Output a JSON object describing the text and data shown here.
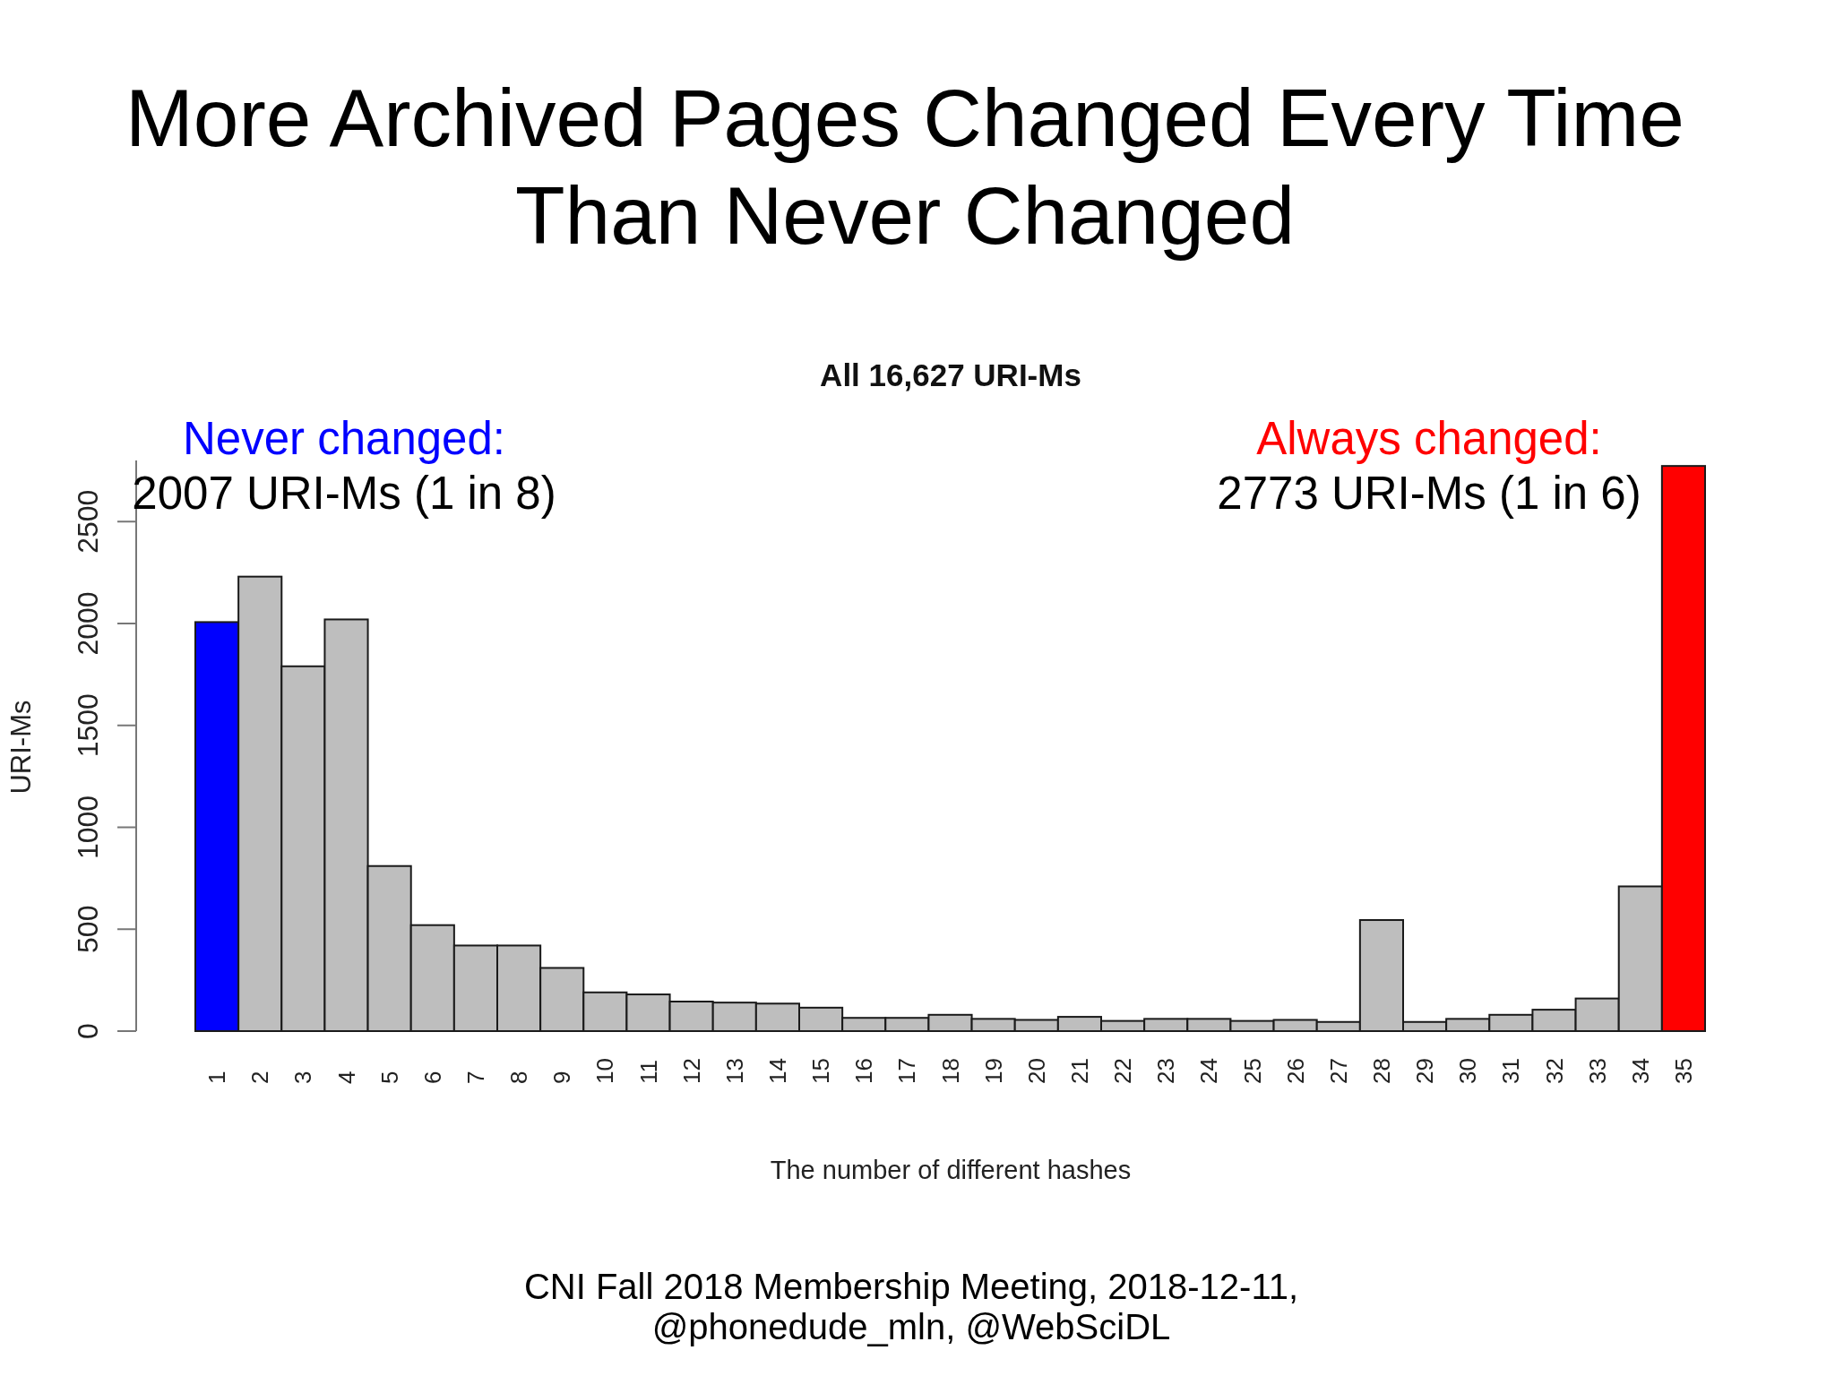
{
  "chart_data": {
    "type": "bar",
    "title": "More Archived Pages Changed Every Time Than Never Changed",
    "subtitle": "All 16,627 URI-Ms",
    "xlabel": "The number of different hashes",
    "ylabel": "URI-Ms",
    "categories": [
      "1",
      "2",
      "3",
      "4",
      "5",
      "6",
      "7",
      "8",
      "9",
      "10",
      "11",
      "12",
      "13",
      "14",
      "15",
      "16",
      "17",
      "18",
      "19",
      "20",
      "21",
      "22",
      "23",
      "24",
      "25",
      "26",
      "27",
      "28",
      "29",
      "30",
      "31",
      "32",
      "33",
      "34",
      "35"
    ],
    "values": [
      2007,
      2230,
      1790,
      2020,
      810,
      520,
      420,
      420,
      310,
      190,
      180,
      145,
      140,
      135,
      115,
      65,
      65,
      80,
      60,
      55,
      70,
      50,
      60,
      60,
      50,
      55,
      45,
      545,
      45,
      60,
      80,
      105,
      160,
      710,
      2773
    ],
    "colors": [
      "#0000ff",
      "#bebebe",
      "#bebebe",
      "#bebebe",
      "#bebebe",
      "#bebebe",
      "#bebebe",
      "#bebebe",
      "#bebebe",
      "#bebebe",
      "#bebebe",
      "#bebebe",
      "#bebebe",
      "#bebebe",
      "#bebebe",
      "#bebebe",
      "#bebebe",
      "#bebebe",
      "#bebebe",
      "#bebebe",
      "#bebebe",
      "#bebebe",
      "#bebebe",
      "#bebebe",
      "#bebebe",
      "#bebebe",
      "#bebebe",
      "#bebebe",
      "#bebebe",
      "#bebebe",
      "#bebebe",
      "#bebebe",
      "#bebebe",
      "#bebebe",
      "#ff0000"
    ],
    "ylim": [
      0,
      2800
    ],
    "yticks": [
      0,
      500,
      1000,
      1500,
      2000,
      2500
    ],
    "annotations": [
      "Never changed:",
      "2007 URI-Ms (1 in 8)",
      "Always changed:",
      "2773 URI-Ms (1 in 6)",
      "CNI Fall 2018 Membership Meeting, 2018-12-11, @phonedude_mln, @WebSciDL"
    ]
  }
}
